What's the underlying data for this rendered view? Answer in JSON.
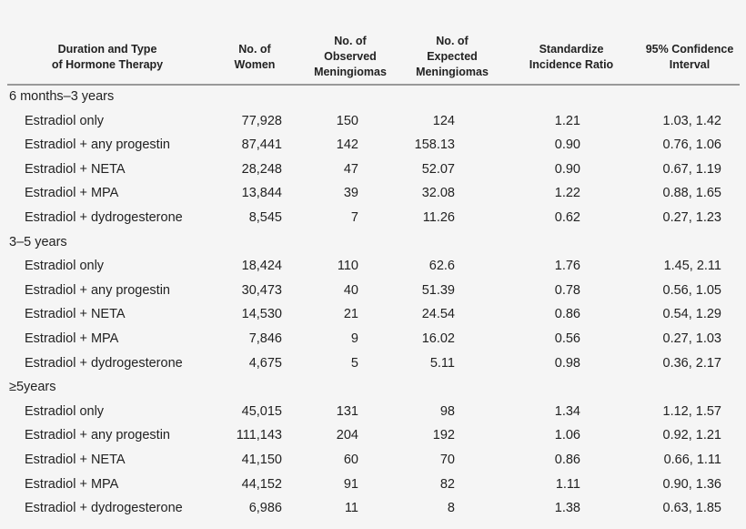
{
  "headers": [
    [
      "Duration and Type",
      "of Hormone Therapy"
    ],
    [
      "No. of",
      "Women"
    ],
    [
      "No. of",
      "Observed",
      "Meningiomas"
    ],
    [
      "No. of",
      "Expected",
      "Meningiomas"
    ],
    [
      "Standardize",
      "Incidence Ratio"
    ],
    [
      "95% Confidence",
      "Interval"
    ]
  ],
  "groups": [
    {
      "label": "6 months–3 years",
      "rows": [
        [
          "Estradiol only",
          "77,928",
          "150",
          "124",
          "1.21",
          "1.03, 1.42"
        ],
        [
          "Estradiol + any progestin",
          "87,441",
          "142",
          "158.13",
          "0.90",
          "0.76, 1.06"
        ],
        [
          "Estradiol + NETA",
          "28,248",
          "47",
          "52.07",
          "0.90",
          "0.67, 1.19"
        ],
        [
          "Estradiol + MPA",
          "13,844",
          "39",
          "32.08",
          "1.22",
          "0.88, 1.65"
        ],
        [
          "Estradiol + dydrogesterone",
          "8,545",
          "7",
          "11.26",
          "0.62",
          "0.27, 1.23"
        ]
      ]
    },
    {
      "label": "3–5 years",
      "rows": [
        [
          "Estradiol only",
          "18,424",
          "110",
          "62.6",
          "1.76",
          "1.45, 2.11"
        ],
        [
          "Estradiol + any progestin",
          "30,473",
          "40",
          "51.39",
          "0.78",
          "0.56, 1.05"
        ],
        [
          "Estradiol + NETA",
          "14,530",
          "21",
          "24.54",
          "0.86",
          "0.54, 1.29"
        ],
        [
          "Estradiol + MPA",
          "7,846",
          "9",
          "16.02",
          "0.56",
          "0.27, 1.03"
        ],
        [
          "Estradiol + dydrogesterone",
          "4,675",
          "5",
          "5.11",
          "0.98",
          "0.36, 2.17"
        ]
      ]
    },
    {
      "label": "≥5years",
      "rows": [
        [
          "Estradiol only",
          "45,015",
          "131",
          "98",
          "1.34",
          "1.12, 1.57"
        ],
        [
          "Estradiol + any progestin",
          "111,143",
          "204",
          "192",
          "1.06",
          "0.92, 1.21"
        ],
        [
          "Estradiol + NETA",
          "41,150",
          "60",
          "70",
          "0.86",
          "0.66, 1.11"
        ],
        [
          "Estradiol + MPA",
          "44,152",
          "91",
          "82",
          "1.11",
          "0.90, 1.36"
        ],
        [
          "Estradiol + dydrogesterone",
          "6,986",
          "11",
          "8",
          "1.38",
          "0.63, 1.85"
        ]
      ]
    }
  ]
}
